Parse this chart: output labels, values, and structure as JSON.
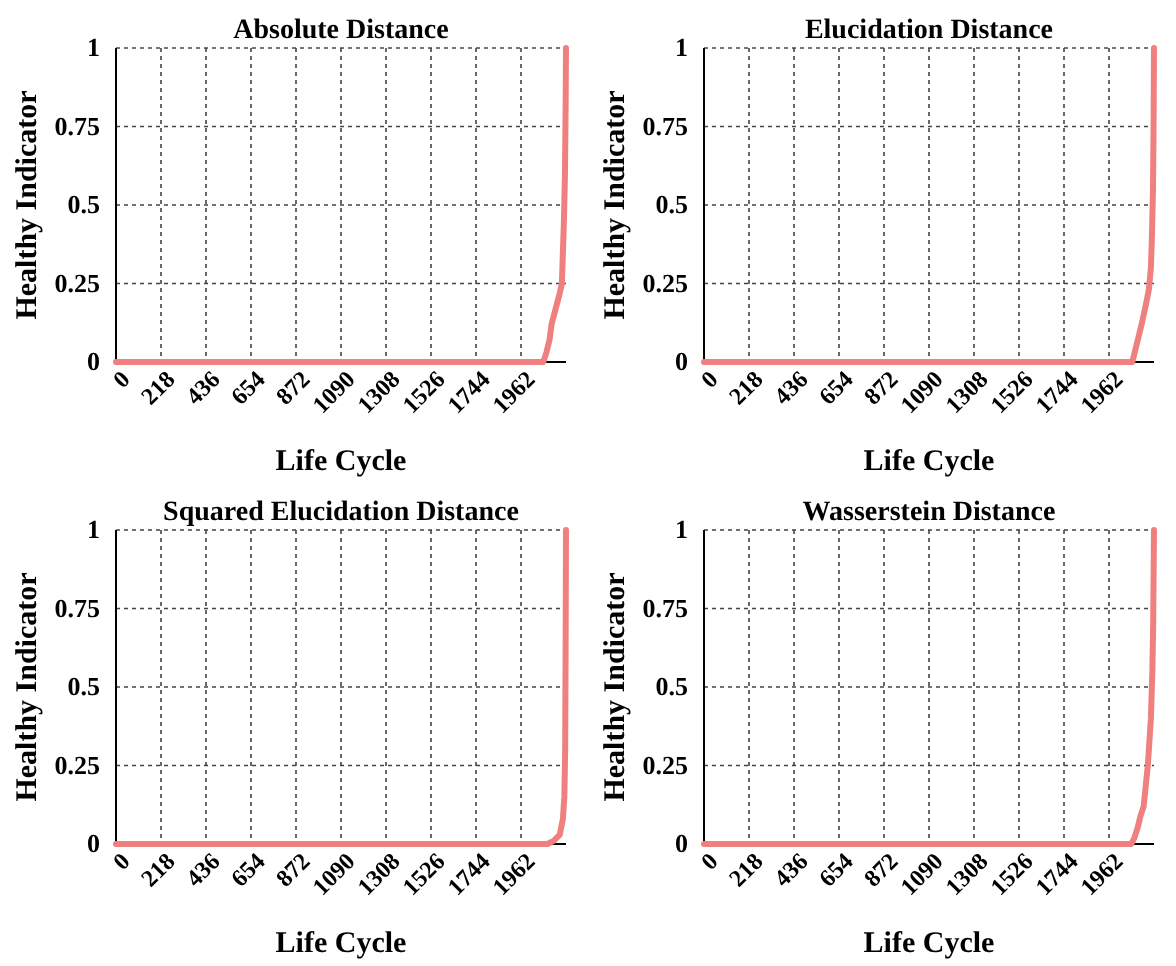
{
  "chart_data": [
    {
      "type": "line",
      "title": "Absolute Distance",
      "xlabel": "Life Cycle",
      "ylabel": "Healthy Indicator",
      "xlim": [
        0,
        2180
      ],
      "ylim": [
        0,
        1
      ],
      "xticks": [
        0,
        218,
        436,
        654,
        872,
        1090,
        1308,
        1526,
        1744,
        1962
      ],
      "yticks": [
        0,
        0.25,
        0.5,
        0.75,
        1
      ],
      "grid": true,
      "line_style": "solid",
      "marker": "none",
      "series": [
        {
          "color": "#f07f7f",
          "x": [
            0,
            2070,
            2085,
            2100,
            2110,
            2130,
            2150,
            2160,
            2165,
            2170,
            2175,
            2178,
            2180
          ],
          "values": [
            0,
            0,
            0.03,
            0.07,
            0.12,
            0.17,
            0.22,
            0.25,
            0.35,
            0.45,
            0.6,
            0.8,
            1
          ]
        }
      ]
    },
    {
      "type": "line",
      "title": "Elucidation Distance",
      "xlabel": "Life Cycle",
      "ylabel": "Healthy Indicator",
      "xlim": [
        0,
        2180
      ],
      "ylim": [
        0,
        1
      ],
      "xticks": [
        0,
        218,
        436,
        654,
        872,
        1090,
        1308,
        1526,
        1744,
        1962
      ],
      "yticks": [
        0,
        0.25,
        0.5,
        0.75,
        1
      ],
      "grid": true,
      "line_style": "solid",
      "marker": "none",
      "series": [
        {
          "color": "#f07f7f",
          "x": [
            0,
            2075,
            2090,
            2105,
            2120,
            2140,
            2155,
            2165,
            2170,
            2175,
            2178,
            2180
          ],
          "values": [
            0,
            0,
            0.04,
            0.08,
            0.12,
            0.18,
            0.23,
            0.3,
            0.4,
            0.55,
            0.75,
            1
          ]
        }
      ]
    },
    {
      "type": "line",
      "title": "Squared Elucidation Distance",
      "xlabel": "Life Cycle",
      "ylabel": "Healthy Indicator",
      "xlim": [
        0,
        2180
      ],
      "ylim": [
        0,
        1
      ],
      "xticks": [
        0,
        218,
        436,
        654,
        872,
        1090,
        1308,
        1526,
        1744,
        1962
      ],
      "yticks": [
        0,
        0.25,
        0.5,
        0.75,
        1
      ],
      "grid": true,
      "line_style": "solid",
      "marker": "none",
      "series": [
        {
          "color": "#f07f7f",
          "x": [
            0,
            2090,
            2120,
            2150,
            2165,
            2172,
            2176,
            2178,
            2180
          ],
          "values": [
            0,
            0,
            0.01,
            0.03,
            0.08,
            0.15,
            0.3,
            0.6,
            1
          ]
        }
      ]
    },
    {
      "type": "line",
      "title": "Wasserstein Distance",
      "xlabel": "Life Cycle",
      "ylabel": "Healthy Indicator",
      "xlim": [
        0,
        2180
      ],
      "ylim": [
        0,
        1
      ],
      "xticks": [
        0,
        218,
        436,
        654,
        872,
        1090,
        1308,
        1526,
        1744,
        1962
      ],
      "yticks": [
        0,
        0.25,
        0.5,
        0.75,
        1
      ],
      "grid": true,
      "line_style": "solid",
      "marker": "none",
      "series": [
        {
          "color": "#f07f7f",
          "x": [
            0,
            2070,
            2085,
            2100,
            2115,
            2130,
            2150,
            2165,
            2172,
            2176,
            2180
          ],
          "values": [
            0,
            0,
            0.02,
            0.05,
            0.09,
            0.12,
            0.25,
            0.4,
            0.55,
            0.7,
            1
          ]
        }
      ]
    }
  ]
}
